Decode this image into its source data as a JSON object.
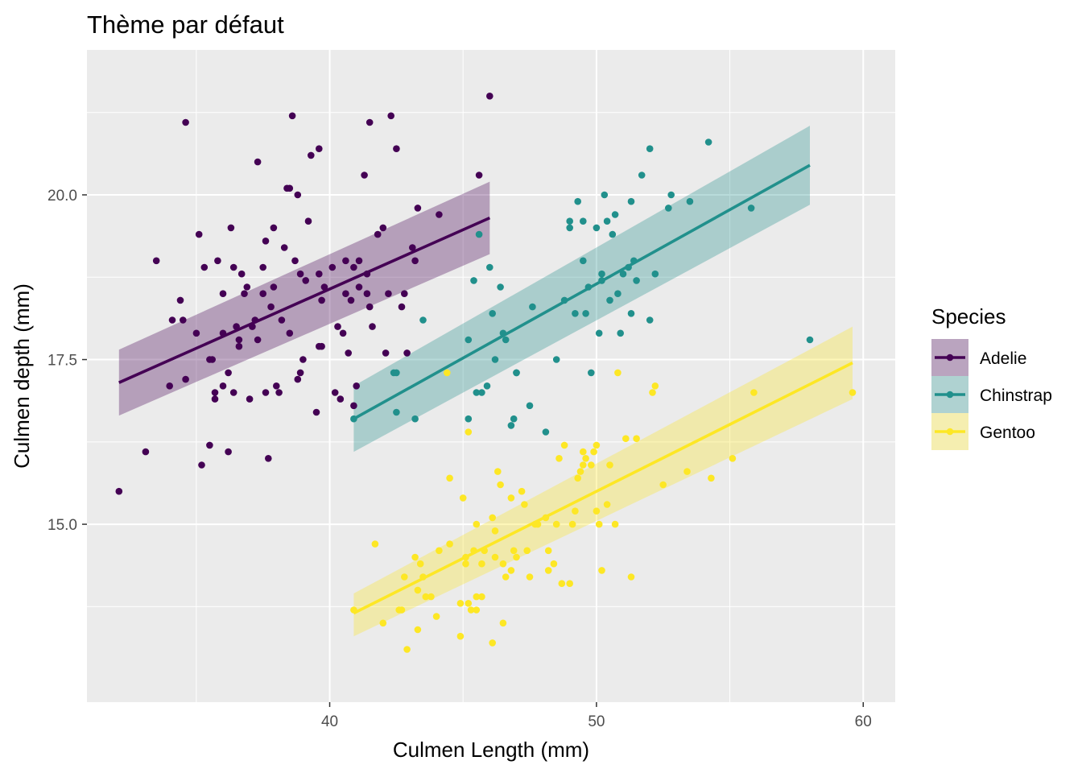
{
  "chart_data": {
    "type": "scatter",
    "title": "Thème par défaut",
    "xlabel": "Culmen Length (mm)",
    "ylabel": "Culmen depth (mm)",
    "xlim": [
      30.9,
      61.2
    ],
    "ylim": [
      12.3,
      22.2
    ],
    "x_ticks": [
      40,
      50,
      60
    ],
    "x_tick_labels": [
      "40",
      "50",
      "60"
    ],
    "y_ticks": [
      15.0,
      17.5,
      20.0
    ],
    "y_tick_labels": [
      "15.0",
      "17.5",
      "20.0"
    ],
    "grid": true,
    "background": "#ebebeb",
    "legend": {
      "title": "Species",
      "position": "right"
    },
    "series": [
      {
        "name": "Adelie",
        "color": "#440154",
        "points": [
          [
            32.1,
            15.5
          ],
          [
            33.1,
            16.1
          ],
          [
            33.5,
            19.0
          ],
          [
            34.0,
            17.1
          ],
          [
            34.1,
            18.1
          ],
          [
            34.4,
            18.4
          ],
          [
            34.5,
            18.1
          ],
          [
            34.6,
            21.1
          ],
          [
            34.6,
            17.2
          ],
          [
            35.0,
            17.9
          ],
          [
            35.1,
            19.4
          ],
          [
            35.2,
            15.9
          ],
          [
            35.3,
            18.9
          ],
          [
            35.5,
            16.2
          ],
          [
            35.5,
            17.5
          ],
          [
            35.6,
            17.5
          ],
          [
            35.7,
            16.9
          ],
          [
            35.7,
            17.0
          ],
          [
            35.8,
            19.0
          ],
          [
            36.0,
            18.5
          ],
          [
            36.0,
            17.9
          ],
          [
            36.2,
            16.1
          ],
          [
            36.2,
            17.3
          ],
          [
            36.3,
            19.5
          ],
          [
            36.5,
            18.0
          ],
          [
            36.6,
            17.8
          ],
          [
            36.7,
            18.8
          ],
          [
            36.8,
            18.5
          ],
          [
            36.9,
            18.6
          ],
          [
            37.0,
            16.9
          ],
          [
            37.2,
            18.1
          ],
          [
            37.3,
            17.8
          ],
          [
            37.5,
            18.9
          ],
          [
            37.6,
            19.3
          ],
          [
            37.7,
            16.0
          ],
          [
            37.8,
            18.3
          ],
          [
            37.9,
            18.6
          ],
          [
            38.1,
            17.0
          ],
          [
            38.2,
            18.1
          ],
          [
            38.5,
            17.9
          ],
          [
            38.6,
            21.2
          ],
          [
            38.7,
            19.0
          ],
          [
            38.8,
            17.2
          ],
          [
            38.9,
            18.8
          ],
          [
            39.0,
            17.5
          ],
          [
            39.2,
            19.6
          ],
          [
            39.3,
            20.6
          ],
          [
            39.5,
            16.7
          ],
          [
            39.6,
            17.7
          ],
          [
            39.7,
            18.4
          ],
          [
            40.2,
            17.0
          ],
          [
            40.3,
            18.0
          ],
          [
            40.6,
            19.0
          ],
          [
            40.8,
            18.4
          ],
          [
            41.0,
            17.1
          ],
          [
            41.1,
            18.6
          ],
          [
            41.3,
            20.3
          ],
          [
            41.5,
            18.3
          ],
          [
            41.8,
            19.4
          ],
          [
            42.0,
            19.5
          ],
          [
            42.2,
            18.5
          ],
          [
            42.3,
            21.2
          ],
          [
            42.5,
            20.7
          ],
          [
            42.7,
            18.3
          ],
          [
            42.8,
            18.5
          ],
          [
            43.1,
            19.2
          ],
          [
            43.2,
            19.0
          ],
          [
            44.1,
            19.7
          ],
          [
            45.6,
            20.3
          ],
          [
            46.0,
            21.5
          ],
          [
            36.4,
            17.0
          ],
          [
            37.1,
            18.0
          ],
          [
            38.0,
            17.1
          ],
          [
            38.3,
            19.2
          ],
          [
            38.5,
            20.1
          ],
          [
            39.1,
            18.7
          ],
          [
            39.6,
            18.8
          ],
          [
            40.1,
            18.9
          ],
          [
            40.5,
            17.9
          ],
          [
            40.9,
            16.8
          ],
          [
            41.4,
            18.5
          ],
          [
            41.6,
            18.0
          ],
          [
            42.1,
            17.6
          ],
          [
            42.9,
            17.6
          ],
          [
            43.3,
            19.8
          ],
          [
            36.0,
            17.1
          ],
          [
            36.4,
            18.9
          ],
          [
            37.5,
            18.5
          ],
          [
            38.4,
            20.1
          ],
          [
            39.8,
            18.6
          ],
          [
            40.7,
            17.6
          ],
          [
            41.5,
            21.1
          ],
          [
            41.4,
            18.8
          ],
          [
            40.6,
            18.5
          ],
          [
            38.8,
            20.0
          ],
          [
            37.6,
            17.0
          ],
          [
            37.9,
            19.5
          ],
          [
            38.9,
            17.3
          ],
          [
            39.7,
            17.7
          ],
          [
            40.4,
            16.9
          ],
          [
            36.6,
            17.7
          ],
          [
            37.3,
            20.5
          ],
          [
            39.6,
            20.7
          ],
          [
            41.1,
            19.0
          ],
          [
            40.9,
            18.9
          ]
        ],
        "fit": {
          "x0": 32.1,
          "y0": 17.15,
          "x1": 46.0,
          "y1": 19.65,
          "lo0": 16.65,
          "hi0": 17.65,
          "lo1": 19.1,
          "hi1": 20.2
        }
      },
      {
        "name": "Chinstrap",
        "color": "#21908c",
        "points": [
          [
            40.9,
            16.6
          ],
          [
            42.4,
            17.3
          ],
          [
            42.5,
            16.7
          ],
          [
            42.5,
            17.3
          ],
          [
            43.2,
            16.6
          ],
          [
            43.5,
            18.1
          ],
          [
            45.2,
            16.6
          ],
          [
            45.4,
            18.7
          ],
          [
            45.5,
            17.0
          ],
          [
            45.6,
            19.4
          ],
          [
            45.7,
            17.0
          ],
          [
            45.9,
            17.1
          ],
          [
            46.1,
            18.2
          ],
          [
            46.2,
            17.5
          ],
          [
            46.4,
            18.6
          ],
          [
            46.5,
            17.9
          ],
          [
            46.6,
            17.8
          ],
          [
            46.8,
            16.5
          ],
          [
            46.9,
            16.6
          ],
          [
            47.0,
            17.3
          ],
          [
            47.5,
            16.8
          ],
          [
            47.6,
            18.3
          ],
          [
            48.1,
            16.4
          ],
          [
            48.5,
            17.5
          ],
          [
            48.8,
            18.4
          ],
          [
            49.0,
            19.5
          ],
          [
            49.2,
            18.2
          ],
          [
            49.3,
            19.9
          ],
          [
            49.5,
            19.0
          ],
          [
            49.6,
            18.2
          ],
          [
            49.7,
            18.6
          ],
          [
            49.8,
            17.3
          ],
          [
            50.0,
            19.5
          ],
          [
            50.1,
            17.9
          ],
          [
            50.2,
            18.8
          ],
          [
            50.3,
            20.0
          ],
          [
            50.5,
            18.4
          ],
          [
            50.6,
            19.4
          ],
          [
            50.8,
            18.5
          ],
          [
            50.9,
            17.9
          ],
          [
            51.0,
            18.8
          ],
          [
            51.3,
            18.2
          ],
          [
            51.4,
            19.0
          ],
          [
            51.5,
            18.7
          ],
          [
            51.7,
            20.3
          ],
          [
            52.0,
            18.1
          ],
          [
            52.0,
            20.7
          ],
          [
            52.2,
            18.8
          ],
          [
            52.7,
            19.8
          ],
          [
            52.8,
            20.0
          ],
          [
            53.5,
            19.9
          ],
          [
            54.2,
            20.8
          ],
          [
            55.8,
            19.8
          ],
          [
            58.0,
            17.8
          ],
          [
            45.2,
            17.8
          ],
          [
            46.0,
            18.9
          ],
          [
            47.0,
            17.3
          ],
          [
            49.5,
            19.6
          ],
          [
            50.4,
            19.6
          ],
          [
            50.7,
            19.7
          ],
          [
            51.2,
            18.9
          ],
          [
            51.3,
            19.9
          ],
          [
            49.0,
            19.6
          ],
          [
            50.2,
            18.7
          ]
        ],
        "fit": {
          "x0": 40.9,
          "y0": 16.6,
          "x1": 58.0,
          "y1": 20.45,
          "lo0": 16.1,
          "hi0": 17.1,
          "lo1": 19.85,
          "hi1": 21.05
        }
      },
      {
        "name": "Gentoo",
        "color": "#fde725",
        "points": [
          [
            40.9,
            13.7
          ],
          [
            41.7,
            14.7
          ],
          [
            42.0,
            13.5
          ],
          [
            42.6,
            13.7
          ],
          [
            42.7,
            13.7
          ],
          [
            42.8,
            14.2
          ],
          [
            42.9,
            13.1
          ],
          [
            43.2,
            14.5
          ],
          [
            43.3,
            13.4
          ],
          [
            43.4,
            14.4
          ],
          [
            43.5,
            14.2
          ],
          [
            43.6,
            13.9
          ],
          [
            43.8,
            13.9
          ],
          [
            44.0,
            13.6
          ],
          [
            44.4,
            17.3
          ],
          [
            44.5,
            14.7
          ],
          [
            44.5,
            15.7
          ],
          [
            44.9,
            13.8
          ],
          [
            44.9,
            13.3
          ],
          [
            45.0,
            15.4
          ],
          [
            45.1,
            14.5
          ],
          [
            45.2,
            13.8
          ],
          [
            45.2,
            16.4
          ],
          [
            45.3,
            13.7
          ],
          [
            45.4,
            14.6
          ],
          [
            45.5,
            13.7
          ],
          [
            45.5,
            15.0
          ],
          [
            45.5,
            13.9
          ],
          [
            45.7,
            13.9
          ],
          [
            45.8,
            14.6
          ],
          [
            46.1,
            13.2
          ],
          [
            46.1,
            15.1
          ],
          [
            46.2,
            14.5
          ],
          [
            46.3,
            15.8
          ],
          [
            46.4,
            15.6
          ],
          [
            46.5,
            13.5
          ],
          [
            46.5,
            14.4
          ],
          [
            46.6,
            14.2
          ],
          [
            46.8,
            15.4
          ],
          [
            46.9,
            14.6
          ],
          [
            47.2,
            15.5
          ],
          [
            47.3,
            15.3
          ],
          [
            47.4,
            14.6
          ],
          [
            47.5,
            14.2
          ],
          [
            47.7,
            15.0
          ],
          [
            47.8,
            15.0
          ],
          [
            48.1,
            15.1
          ],
          [
            48.2,
            14.3
          ],
          [
            48.4,
            14.4
          ],
          [
            48.5,
            15.0
          ],
          [
            48.6,
            16.0
          ],
          [
            48.7,
            14.1
          ],
          [
            48.8,
            16.2
          ],
          [
            49.0,
            14.1
          ],
          [
            49.1,
            15.0
          ],
          [
            49.2,
            15.2
          ],
          [
            49.3,
            15.7
          ],
          [
            49.4,
            15.8
          ],
          [
            49.5,
            16.1
          ],
          [
            49.6,
            16.0
          ],
          [
            49.8,
            15.9
          ],
          [
            49.9,
            16.1
          ],
          [
            50.0,
            15.2
          ],
          [
            50.1,
            15.0
          ],
          [
            50.2,
            14.3
          ],
          [
            50.4,
            15.3
          ],
          [
            50.5,
            15.9
          ],
          [
            50.7,
            15.0
          ],
          [
            50.8,
            17.3
          ],
          [
            51.1,
            16.3
          ],
          [
            51.3,
            14.2
          ],
          [
            51.5,
            16.3
          ],
          [
            52.1,
            17.0
          ],
          [
            52.2,
            17.1
          ],
          [
            52.5,
            15.6
          ],
          [
            53.4,
            15.8
          ],
          [
            54.3,
            15.7
          ],
          [
            55.1,
            16.0
          ],
          [
            55.9,
            17.0
          ],
          [
            59.6,
            17.0
          ],
          [
            45.1,
            14.4
          ],
          [
            45.7,
            14.4
          ],
          [
            46.2,
            14.9
          ],
          [
            47.0,
            14.5
          ],
          [
            48.2,
            14.6
          ],
          [
            49.5,
            15.9
          ],
          [
            50.0,
            16.2
          ],
          [
            44.1,
            14.6
          ],
          [
            43.3,
            14.0
          ],
          [
            46.8,
            14.3
          ]
        ],
        "fit": {
          "x0": 40.9,
          "y0": 13.65,
          "x1": 59.6,
          "y1": 17.45,
          "lo0": 13.3,
          "hi0": 13.95,
          "lo1": 16.9,
          "hi1": 18.0
        }
      }
    ]
  }
}
